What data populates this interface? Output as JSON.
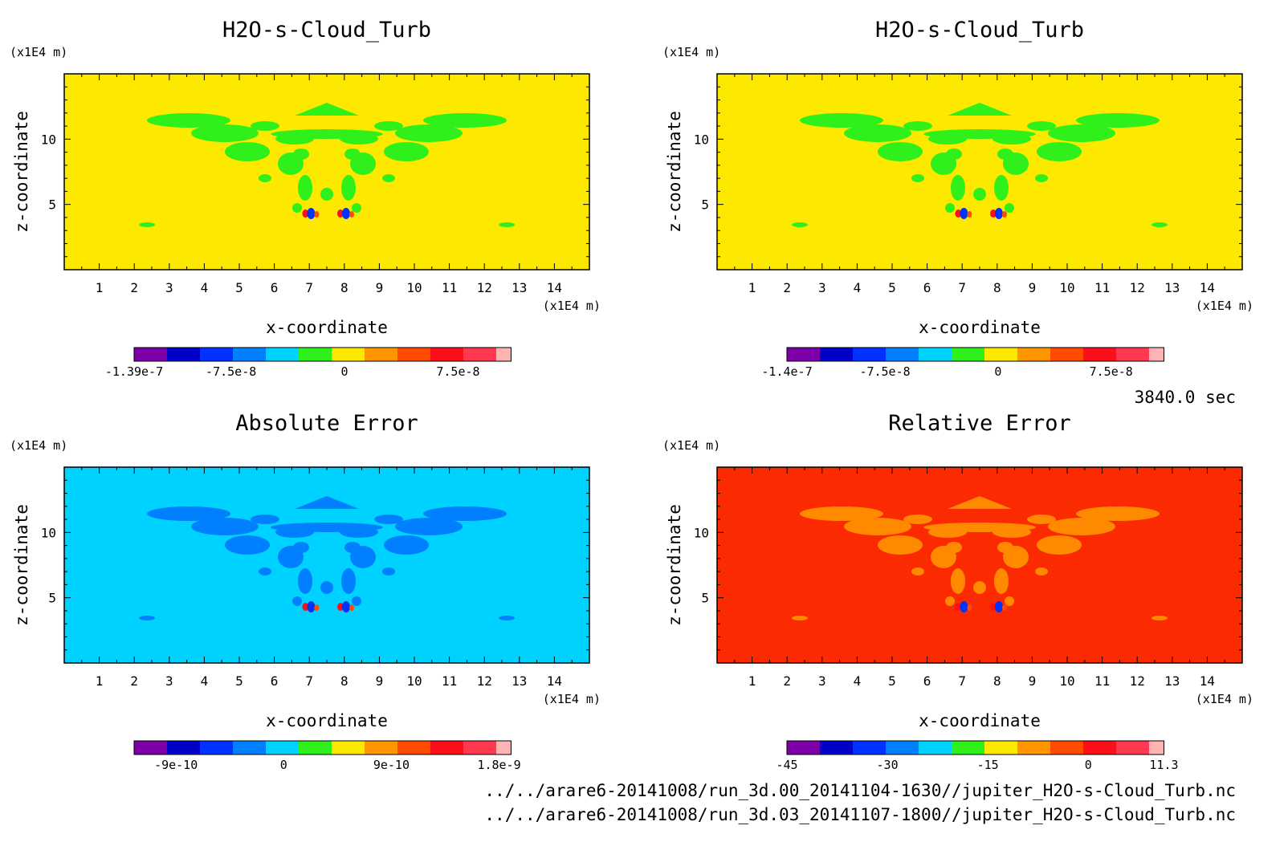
{
  "time_label": "3840.0 sec",
  "files": [
    "../../arare6-20141008/run_3d.00_20141104-1630//jupiter_H2O-s-Cloud_Turb.nc",
    "../../arare6-20141008/run_3d.03_20141107-1800//jupiter_H2O-s-Cloud_Turb.nc"
  ],
  "colormap": [
    "#7e00a8",
    "#0000c8",
    "#0032ff",
    "#0080ff",
    "#00d2ff",
    "#2ff01a",
    "#fde800",
    "#ff9600",
    "#ff4a00",
    "#fb0f1a",
    "#ff3a50",
    "#ffb4b4"
  ],
  "chart_data": [
    {
      "type": "heatmap",
      "title": "H2O-s-Cloud_Turb",
      "xlabel": "x-coordinate",
      "ylabel": "z-coordinate",
      "x_unit": "(x1E4 m)",
      "y_unit": "(x1E4 m)",
      "xlim": [
        0,
        15
      ],
      "ylim": [
        0,
        15
      ],
      "x_ticks": [
        1,
        2,
        3,
        4,
        5,
        6,
        7,
        8,
        9,
        10,
        11,
        12,
        13,
        14
      ],
      "y_ticks": [
        5,
        10
      ],
      "background_color": "#fde800",
      "pattern_color": "#2ff01a",
      "colorbar_range": [
        -1.39e-07,
        1.1e-07
      ],
      "colorbar_ticks": [
        {
          "value": -1.39e-07,
          "label": "-1.39e-7"
        },
        {
          "value": -7.5e-08,
          "label": "-7.5e-8"
        },
        {
          "value": 0,
          "label": "0"
        },
        {
          "value": 7.5e-08,
          "label": "7.5e-8"
        }
      ]
    },
    {
      "type": "heatmap",
      "title": "H2O-s-Cloud_Turb",
      "xlabel": "x-coordinate",
      "ylabel": "z-coordinate",
      "x_unit": "(x1E4 m)",
      "y_unit": "(x1E4 m)",
      "xlim": [
        0,
        15
      ],
      "ylim": [
        0,
        15
      ],
      "x_ticks": [
        1,
        2,
        3,
        4,
        5,
        6,
        7,
        8,
        9,
        10,
        11,
        12,
        13,
        14
      ],
      "y_ticks": [
        5,
        10
      ],
      "background_color": "#fde800",
      "pattern_color": "#2ff01a",
      "colorbar_range": [
        -1.4e-07,
        1.1e-07
      ],
      "colorbar_ticks": [
        {
          "value": -1.4e-07,
          "label": "-1.4e-7"
        },
        {
          "value": -7.5e-08,
          "label": "-7.5e-8"
        },
        {
          "value": 0,
          "label": "0"
        },
        {
          "value": 7.5e-08,
          "label": "7.5e-8"
        }
      ]
    },
    {
      "type": "heatmap",
      "title": "Absolute Error",
      "xlabel": "x-coordinate",
      "ylabel": "z-coordinate",
      "x_unit": "(x1E4 m)",
      "y_unit": "(x1E4 m)",
      "xlim": [
        0,
        15
      ],
      "ylim": [
        0,
        15
      ],
      "x_ticks": [
        1,
        2,
        3,
        4,
        5,
        6,
        7,
        8,
        9,
        10,
        11,
        12,
        13,
        14
      ],
      "y_ticks": [
        5,
        10
      ],
      "background_color": "#00d2ff",
      "pattern_color": "#0080ff",
      "colorbar_range": [
        -1.25e-09,
        1.9e-09
      ],
      "colorbar_ticks": [
        {
          "value": -9e-10,
          "label": "-9e-10"
        },
        {
          "value": 0,
          "label": "0"
        },
        {
          "value": 9e-10,
          "label": "9e-10"
        },
        {
          "value": 1.8e-09,
          "label": "1.8e-9"
        }
      ]
    },
    {
      "type": "heatmap",
      "title": "Relative Error",
      "xlabel": "x-coordinate",
      "ylabel": "z-coordinate",
      "x_unit": "(x1E4 m)",
      "y_unit": "(x1E4 m)",
      "xlim": [
        0,
        15
      ],
      "ylim": [
        0,
        15
      ],
      "x_ticks": [
        1,
        2,
        3,
        4,
        5,
        6,
        7,
        8,
        9,
        10,
        11,
        12,
        13,
        14
      ],
      "y_ticks": [
        5,
        10
      ],
      "background_color": "#fb2a00",
      "pattern_color": "#ff8a00",
      "colorbar_range": [
        -45,
        11.3
      ],
      "colorbar_ticks": [
        {
          "value": -45,
          "label": "-45"
        },
        {
          "value": -30,
          "label": "-30"
        },
        {
          "value": -15,
          "label": "-15"
        },
        {
          "value": 0,
          "label": "0"
        },
        {
          "value": 11.3,
          "label": "11.3"
        }
      ]
    }
  ]
}
